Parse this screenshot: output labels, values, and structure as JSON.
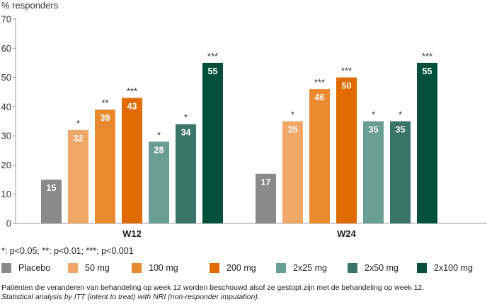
{
  "chart_data": {
    "type": "bar",
    "ylabel": "% responders",
    "ylim": [
      0,
      70
    ],
    "yticks": [
      0,
      10,
      20,
      30,
      40,
      50,
      60,
      70
    ],
    "grid": false,
    "legend_position": "bottom",
    "categories": [
      "W12",
      "W24"
    ],
    "series": [
      {
        "name": "Placebo",
        "color": "#8a8a8a",
        "values": [
          15,
          17
        ],
        "significance": [
          "",
          ""
        ]
      },
      {
        "name": "50 mg",
        "color": "#f0a868",
        "values": [
          32,
          35
        ],
        "significance": [
          "*",
          "*"
        ]
      },
      {
        "name": "100 mg",
        "color": "#e98a30",
        "values": [
          39,
          46
        ],
        "significance": [
          "**",
          "***"
        ]
      },
      {
        "name": "200 mg",
        "color": "#e06c00",
        "values": [
          43,
          50
        ],
        "significance": [
          "***",
          "***"
        ]
      },
      {
        "name": "2x25 mg",
        "color": "#6a9e94",
        "values": [
          28,
          35
        ],
        "significance": [
          "*",
          "*"
        ]
      },
      {
        "name": "2x50 mg",
        "color": "#3b7468",
        "values": [
          34,
          35
        ],
        "significance": [
          "*",
          "*"
        ]
      },
      {
        "name": "2x100 mg",
        "color": "#00503c",
        "values": [
          55,
          55
        ],
        "significance": [
          "***",
          "***"
        ]
      }
    ]
  },
  "significance_note": "*: p<0.05; **: p<0.01; ***: p<0.001",
  "footnote": {
    "line1": "Patiënten die veranderen van behandeling op week 12 worden beschouwd alsof ze gestopt zijn met de behandeling op week 12.",
    "line2": "Statistical analysis by ITT (intent to treat) with NRI (non-responder imputation)."
  }
}
